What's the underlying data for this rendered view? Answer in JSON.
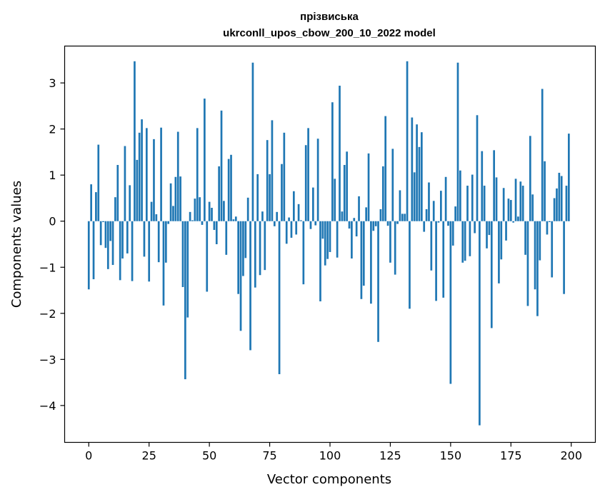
{
  "chart_data": {
    "type": "bar",
    "title": "прізвиська",
    "subtitle": "ukrconll_upos_cbow_200_10_2022 model",
    "xlabel": "Vector components",
    "ylabel": "Components values",
    "xlim": [
      -10,
      210
    ],
    "ylim": [
      -4.8,
      3.8
    ],
    "xticks": [
      0,
      25,
      50,
      75,
      100,
      125,
      150,
      175,
      200
    ],
    "yticks": [
      -4,
      -3,
      -2,
      -1,
      0,
      1,
      2,
      3
    ],
    "grid": false,
    "bar_color": "#1f77b4",
    "values": [
      -1.48,
      0.8,
      -1.26,
      0.63,
      1.66,
      -0.52,
      -0.02,
      -0.58,
      -1.04,
      -0.43,
      -0.95,
      0.52,
      1.22,
      -1.28,
      -0.81,
      1.63,
      -0.7,
      0.78,
      -1.3,
      3.47,
      1.33,
      1.92,
      2.21,
      -0.77,
      2.02,
      -1.31,
      0.42,
      1.78,
      0.15,
      -0.89,
      2.03,
      -1.83,
      -0.9,
      -0.06,
      0.82,
      0.33,
      0.96,
      1.94,
      0.97,
      -1.43,
      -3.43,
      -2.09,
      0.2,
      0.02,
      0.49,
      2.02,
      0.52,
      -0.08,
      2.66,
      -1.53,
      0.42,
      0.29,
      -0.19,
      -0.5,
      1.19,
      2.4,
      0.44,
      -0.73,
      1.35,
      1.44,
      0.04,
      0.1,
      -1.58,
      -2.38,
      -1.19,
      -0.8,
      0.51,
      -2.8,
      3.44,
      -1.44,
      1.02,
      -1.17,
      0.21,
      -1.06,
      1.76,
      1.02,
      2.19,
      -0.11,
      0.2,
      -3.32,
      1.24,
      1.92,
      -0.49,
      0.08,
      -0.36,
      0.65,
      -0.29,
      0.37,
      0.02,
      -1.37,
      1.65,
      2.02,
      -0.17,
      0.73,
      -0.09,
      1.79,
      -1.74,
      -0.38,
      -0.96,
      -0.82,
      -0.67,
      2.58,
      0.92,
      -0.79,
      2.94,
      0.21,
      1.22,
      1.51,
      -0.16,
      -0.81,
      0.07,
      -0.33,
      0.54,
      -1.69,
      -1.4,
      0.3,
      1.47,
      -1.79,
      -0.21,
      -0.11,
      -2.62,
      0.26,
      1.19,
      2.28,
      -0.1,
      -0.9,
      1.57,
      -1.16,
      -0.06,
      0.67,
      0.16,
      0.16,
      3.47,
      -1.9,
      2.25,
      1.06,
      2.1,
      1.61,
      1.93,
      -0.23,
      0.26,
      0.84,
      -1.07,
      0.44,
      -1.73,
      -0.03,
      0.66,
      -1.66,
      0.96,
      -0.1,
      -3.53,
      -0.53,
      0.32,
      3.44,
      1.1,
      -0.9,
      -0.86,
      0.77,
      -0.76,
      1.01,
      -0.26,
      2.3,
      -4.43,
      1.52,
      0.77,
      -0.59,
      -0.3,
      -2.32,
      1.54,
      0.95,
      -1.35,
      -0.83,
      0.72,
      -0.42,
      0.49,
      0.46,
      -0.03,
      0.92,
      0.1,
      0.86,
      0.77,
      -0.73,
      -1.84,
      1.85,
      0.58,
      -1.48,
      -2.06,
      -0.85,
      2.87,
      1.3,
      -0.29,
      -0.02,
      -1.22,
      0.5,
      0.71,
      1.05,
      0.98,
      -1.58,
      0.77,
      1.9
    ]
  }
}
